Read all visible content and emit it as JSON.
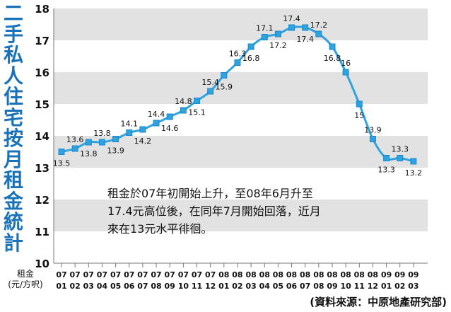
{
  "title_chars": [
    "二",
    "手",
    "私",
    "人",
    "住",
    "宅",
    "按",
    "月",
    "租",
    "金",
    "統",
    "計"
  ],
  "unit_label": [
    "租金",
    "(元/方呎)"
  ],
  "source": "(資料來源：中原地產研究部)",
  "annotation_lines": [
    "租金於07年初開始上升，至08年6月升至",
    "17.4元高位後，在同年7月開始回落，近月",
    "來在13元水平徘徊。"
  ],
  "colors": {
    "line": "#2fa3e0",
    "marker_edge": "#1d88c9",
    "band": "#e2e2e2",
    "title": "#1a73b8"
  },
  "chart_data": {
    "type": "line",
    "categories": [
      [
        "07",
        "01"
      ],
      [
        "07",
        "02"
      ],
      [
        "07",
        "03"
      ],
      [
        "07",
        "04"
      ],
      [
        "07",
        "05"
      ],
      [
        "07",
        "06"
      ],
      [
        "07",
        "07"
      ],
      [
        "07",
        "08"
      ],
      [
        "07",
        "09"
      ],
      [
        "07",
        "10"
      ],
      [
        "07",
        "11"
      ],
      [
        "07",
        "12"
      ],
      [
        "08",
        "01"
      ],
      [
        "08",
        "02"
      ],
      [
        "08",
        "03"
      ],
      [
        "08",
        "04"
      ],
      [
        "08",
        "05"
      ],
      [
        "08",
        "06"
      ],
      [
        "08",
        "07"
      ],
      [
        "08",
        "08"
      ],
      [
        "08",
        "09"
      ],
      [
        "08",
        "10"
      ],
      [
        "08",
        "11"
      ],
      [
        "08",
        "12"
      ],
      [
        "09",
        "01"
      ],
      [
        "09",
        "02"
      ],
      [
        "09",
        "03"
      ]
    ],
    "values": [
      13.5,
      13.6,
      13.8,
      13.8,
      13.9,
      14.1,
      14.2,
      14.4,
      14.6,
      14.8,
      15.1,
      15.4,
      15.9,
      16.3,
      16.8,
      17.1,
      17.2,
      17.4,
      17.4,
      17.2,
      16.8,
      16,
      15,
      13.9,
      13.3,
      13.3,
      13.2
    ],
    "data_labels": [
      "13.5",
      "13.6",
      "13.8",
      "13.8",
      "13.9",
      "14.1",
      "14.2",
      "14.4",
      "14.6",
      "14.8",
      "15.1",
      "15.4",
      "15.9",
      "16.3",
      "16.8",
      "17.1",
      "17.2",
      "17.4",
      "17.4",
      "17.2",
      "16.8",
      "16",
      "15",
      "13.9",
      "13.3",
      "13.3",
      "13.2"
    ],
    "label_pos": [
      "below",
      "above",
      "below",
      "above",
      "below",
      "above",
      "below",
      "above",
      "below",
      "above",
      "below",
      "above",
      "below",
      "above",
      "below",
      "above",
      "below",
      "above",
      "below",
      "above",
      "below",
      "above",
      "below",
      "above",
      "below",
      "above",
      "below"
    ],
    "ylim": [
      10,
      18
    ],
    "yticks": [
      10,
      11,
      12,
      13,
      14,
      15,
      16,
      17,
      18
    ],
    "grid": "alternating horizontal bands",
    "legend": "none"
  }
}
